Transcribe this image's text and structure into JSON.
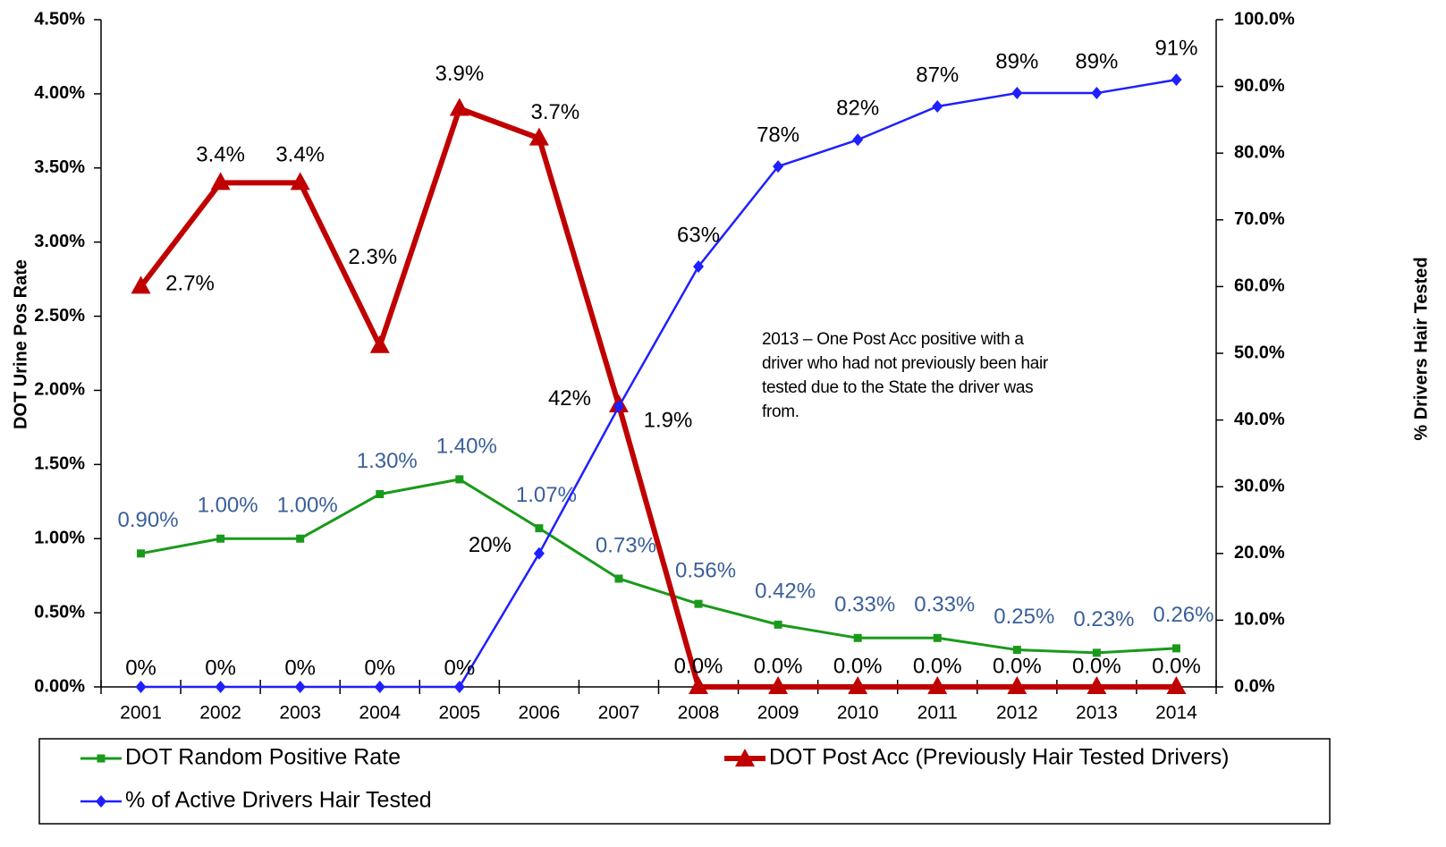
{
  "chart_data": {
    "type": "line",
    "categories": [
      "2001",
      "2002",
      "2003",
      "2004",
      "2005",
      "2006",
      "2007",
      "2008",
      "2009",
      "2010",
      "2011",
      "2012",
      "2013",
      "2014"
    ],
    "series": [
      {
        "name": "DOT Random Positive Rate",
        "color": "#1a9a1a",
        "axis": "y",
        "marker": "square",
        "values": [
          0.9,
          1.0,
          1.0,
          1.3,
          1.4,
          1.07,
          0.73,
          0.56,
          0.42,
          0.33,
          0.33,
          0.25,
          0.23,
          0.26
        ],
        "value_labels": [
          "0.90%",
          "1.00%",
          "1.00%",
          "1.30%",
          "1.40%",
          "1.07%",
          "0.73%",
          "0.56%",
          "0.42%",
          "0.33%",
          "0.33%",
          "0.25%",
          "0.23%",
          "0.26%"
        ]
      },
      {
        "name": "DOT Post Acc (Previously Hair Tested Drivers)",
        "color": "#c00000",
        "axis": "y",
        "marker": "triangle",
        "values": [
          2.7,
          3.4,
          3.4,
          2.3,
          3.9,
          3.7,
          1.9,
          0,
          0,
          0,
          0,
          0,
          0,
          0
        ],
        "value_labels": [
          "2.7%",
          "3.4%",
          "3.4%",
          "2.3%",
          "3.9%",
          "3.7%",
          "1.9%",
          "0.0%",
          "0.0%",
          "0.0%",
          "0.0%",
          "0.0%",
          "0.0%",
          "0.0%"
        ]
      },
      {
        "name": "% of Active Drivers Hair Tested",
        "color": "#1f1fff",
        "axis": "y2",
        "marker": "diamond",
        "values": [
          0,
          0,
          0,
          0,
          0,
          20,
          42,
          63,
          78,
          82,
          87,
          89,
          89,
          91
        ],
        "value_labels": [
          "0%",
          "0%",
          "0%",
          "0%",
          "0%",
          "20%",
          "42%",
          "63%",
          "78%",
          "82%",
          "87%",
          "89%",
          "89%",
          "91%"
        ]
      }
    ],
    "ylabel": "DOT Urine Pos Rate",
    "y2label": "% Drivers Hair Tested",
    "ylim": [
      0,
      4.5
    ],
    "yticks": [
      {
        "value": 0,
        "label": "0.00%"
      },
      {
        "value": 0.5,
        "label": "0.50%"
      },
      {
        "value": 1,
        "label": "1.00%"
      },
      {
        "value": 1.5,
        "label": "1.50%"
      },
      {
        "value": 2,
        "label": "2.00%"
      },
      {
        "value": 2.5,
        "label": "2.50%"
      },
      {
        "value": 3,
        "label": "3.00%"
      },
      {
        "value": 3.5,
        "label": "3.50%"
      },
      {
        "value": 4,
        "label": "4.00%"
      },
      {
        "value": 4.5,
        "label": "4.50%"
      }
    ],
    "y2lim": [
      0,
      100
    ],
    "y2ticks": [
      {
        "value": 0,
        "label": "0.0%"
      },
      {
        "value": 10,
        "label": "10.0%"
      },
      {
        "value": 20,
        "label": "20.0%"
      },
      {
        "value": 30,
        "label": "30.0%"
      },
      {
        "value": 40,
        "label": "40.0%"
      },
      {
        "value": 50,
        "label": "50.0%"
      },
      {
        "value": 60,
        "label": "60.0%"
      },
      {
        "value": 70,
        "label": "70.0%"
      },
      {
        "value": 80,
        "label": "80.0%"
      },
      {
        "value": 90,
        "label": "90.0%"
      },
      {
        "value": 100,
        "label": "100.0%"
      }
    ],
    "annotation": "2013 – One Post Acc positive with a driver who had not previously been hair tested due to the State the driver was from.",
    "legend": "bottom"
  }
}
